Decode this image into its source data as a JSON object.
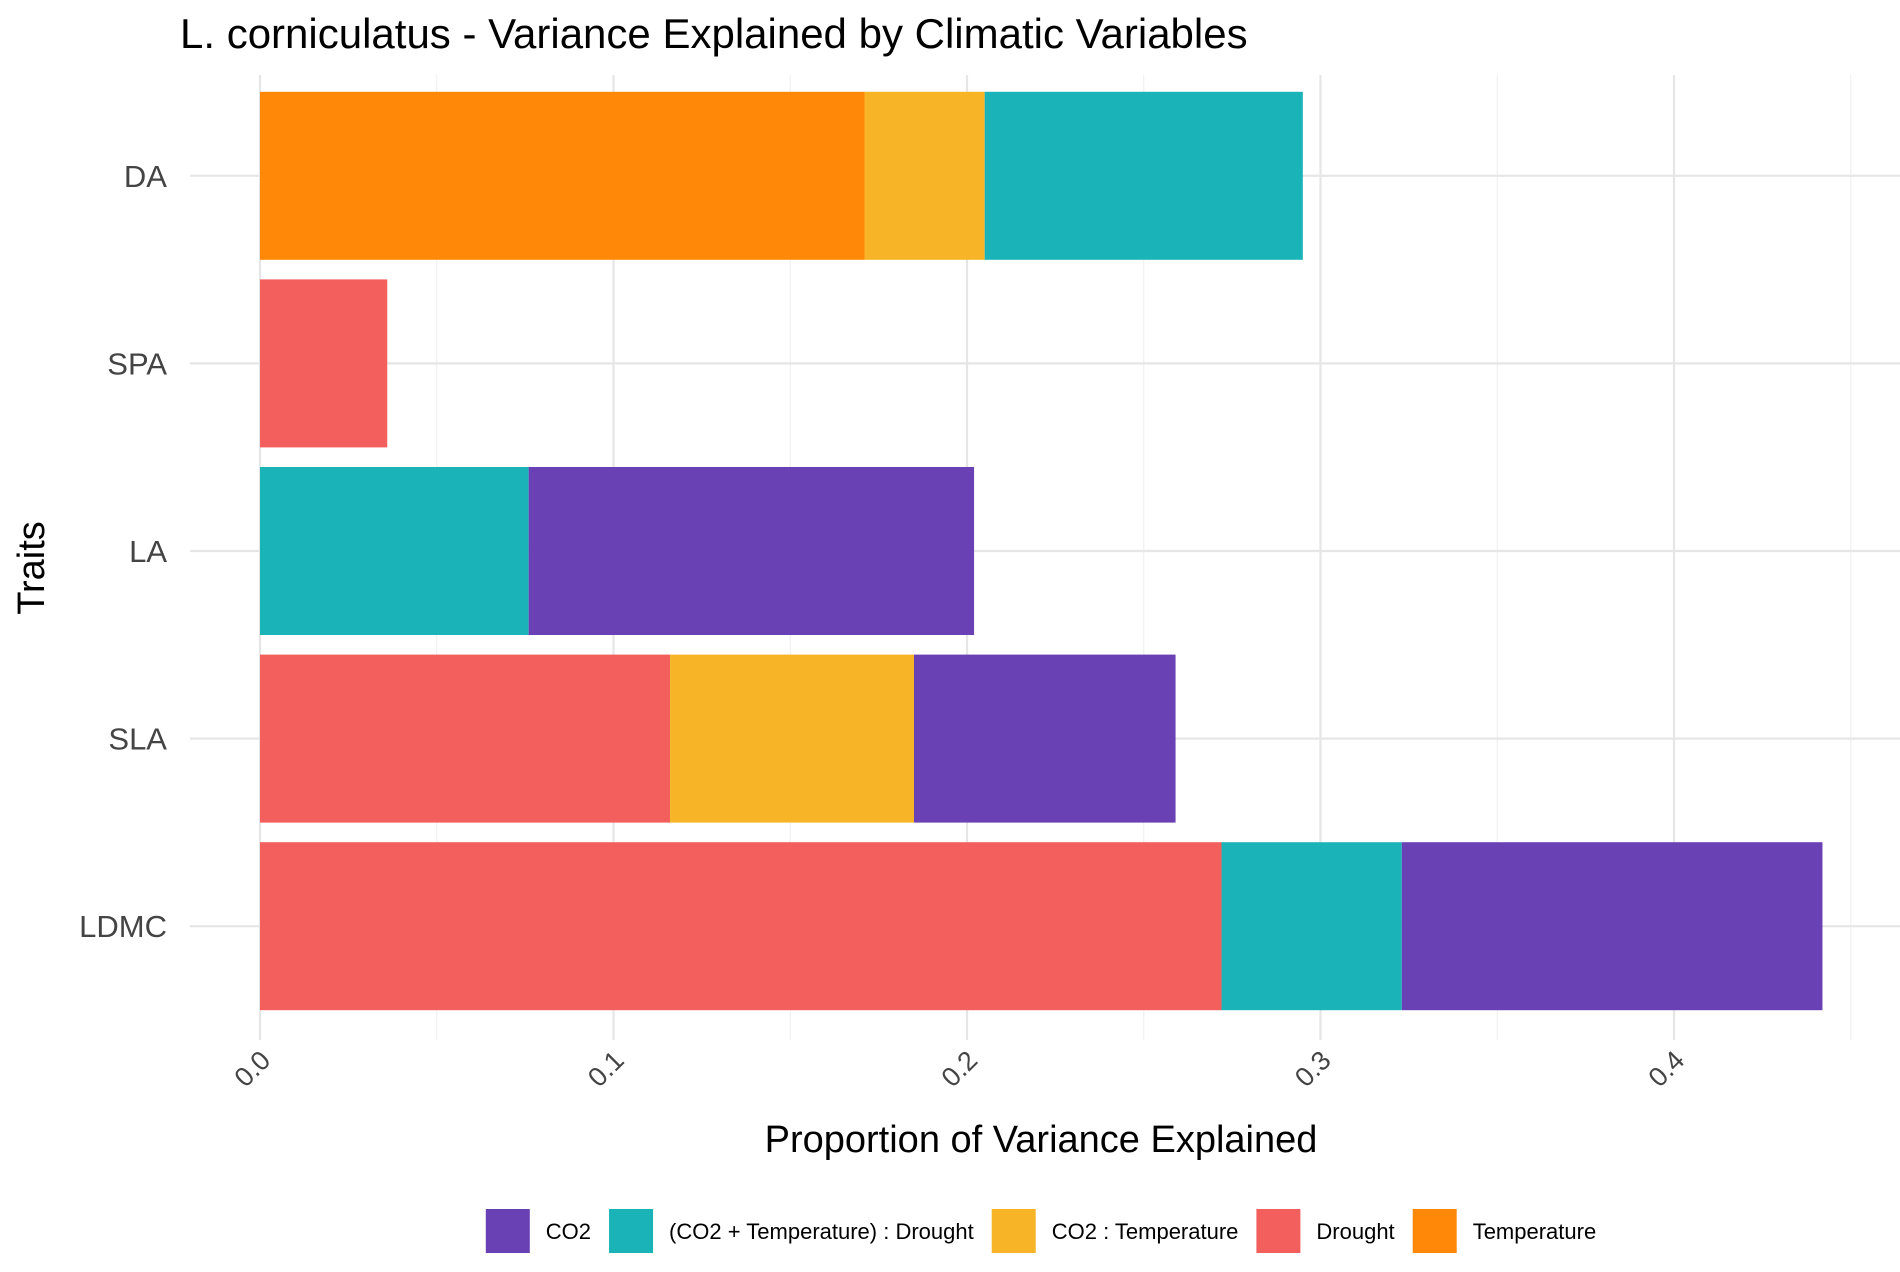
{
  "chart_data": {
    "type": "bar",
    "orientation": "horizontal",
    "stacked": true,
    "title": "L. corniculatus - Variance Explained by Climatic Variables",
    "xlabel": "Proportion of Variance Explained",
    "ylabel": "Traits",
    "xlim": [
      0,
      0.45
    ],
    "xticks": [
      0.0,
      0.1,
      0.2,
      0.3,
      0.4
    ],
    "xtick_labels": [
      "0.0",
      "0.1",
      "0.2",
      "0.3",
      "0.4"
    ],
    "categories": [
      "DA",
      "SPA",
      "LA",
      "SLA",
      "LDMC"
    ],
    "legend_position": "bottom",
    "grid": true,
    "series": [
      {
        "name": "Drought",
        "color": "#F25F5C",
        "values": [
          0,
          0.036,
          0,
          0.116,
          0.272
        ]
      },
      {
        "name": "Temperature",
        "color": "#FF8808",
        "values": [
          0.171,
          0,
          0,
          0,
          0
        ]
      },
      {
        "name": "CO2 : Temperature",
        "color": "#F8B427",
        "values": [
          0.034,
          0,
          0,
          0.069,
          0
        ]
      },
      {
        "name": "(CO2 + Temperature) : Drought",
        "color": "#1AB3B8",
        "values": [
          0.09,
          0,
          0.076,
          0,
          0.051
        ]
      },
      {
        "name": "CO2",
        "color": "#6A41B4",
        "values": [
          0,
          0,
          0.126,
          0.074,
          0.119
        ]
      }
    ],
    "legend_order": [
      "CO2",
      "(CO2 + Temperature) : Drought",
      "CO2 : Temperature",
      "Drought",
      "Temperature"
    ]
  }
}
